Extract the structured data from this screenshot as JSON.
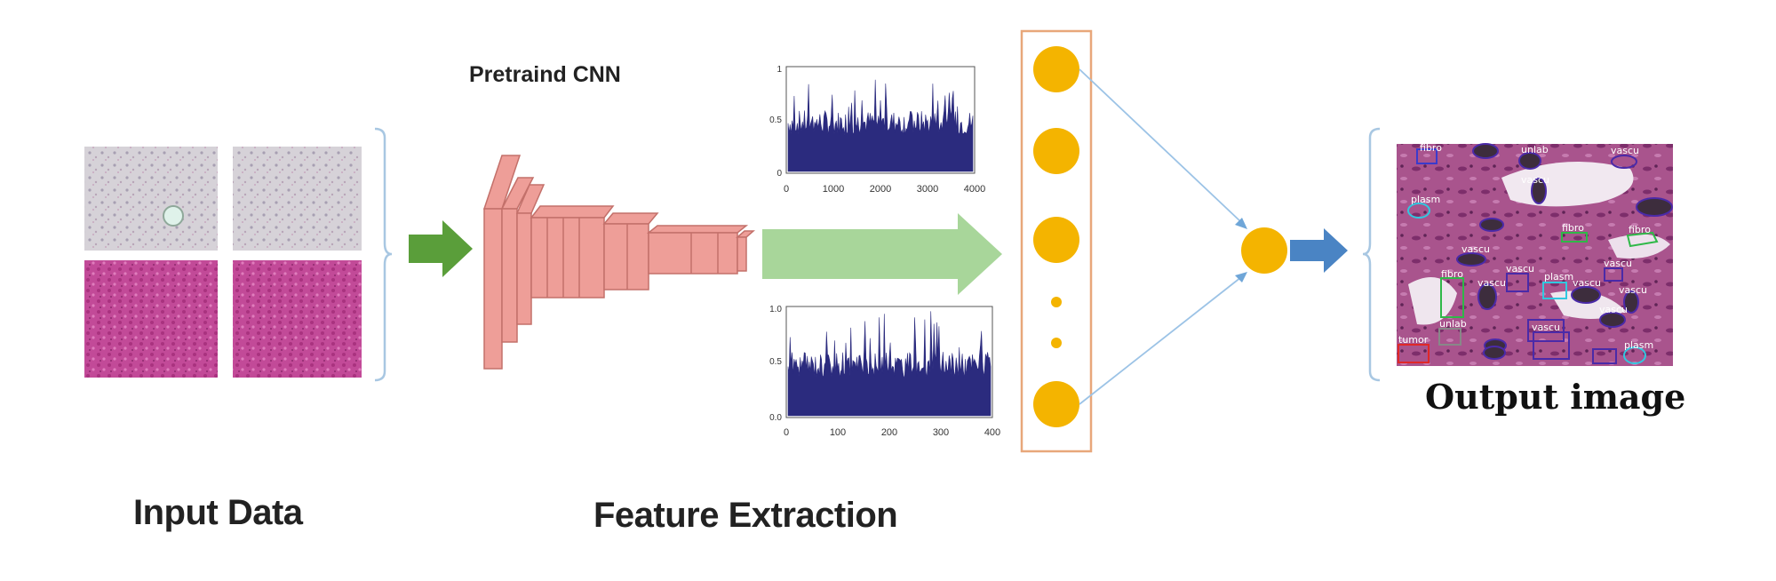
{
  "labels": {
    "input_data": "Input Data",
    "pretrained_cnn": "Pretraind CNN",
    "feature_extraction": "Feature Extraction",
    "output_image": "Output image"
  },
  "plots": {
    "top": {
      "yticks": [
        "1",
        "0.5",
        "0"
      ],
      "xticks": [
        "0",
        "1000",
        "2000",
        "3000",
        "4000"
      ]
    },
    "bottom": {
      "yticks": [
        "1.0",
        "0.5",
        "0.0"
      ],
      "xticks": [
        "0",
        "100",
        "200",
        "300",
        "400"
      ]
    }
  },
  "output_annotations": [
    "fibro",
    "unlab",
    "vascu",
    "vascu",
    "plasm",
    "fibro",
    "fibro",
    "vascu",
    "vascu",
    "fibro",
    "vascu",
    "plasm",
    "vascu",
    "vascu",
    "vascu",
    "unlab",
    "vascu",
    "vascu",
    "tumor",
    "plasm"
  ],
  "colors": {
    "arrow_green": "#5a9e3a",
    "cnn_block": "#ee9e98",
    "big_arrow": "#a8d69a",
    "neuron": "#f4b400",
    "layer_box": "#e8a77a",
    "connector": "#9cc3e6",
    "arrow_blue": "#4a84c4",
    "plot_fill": "#2b2b7e",
    "tissue_pink": "#c04a9a"
  }
}
